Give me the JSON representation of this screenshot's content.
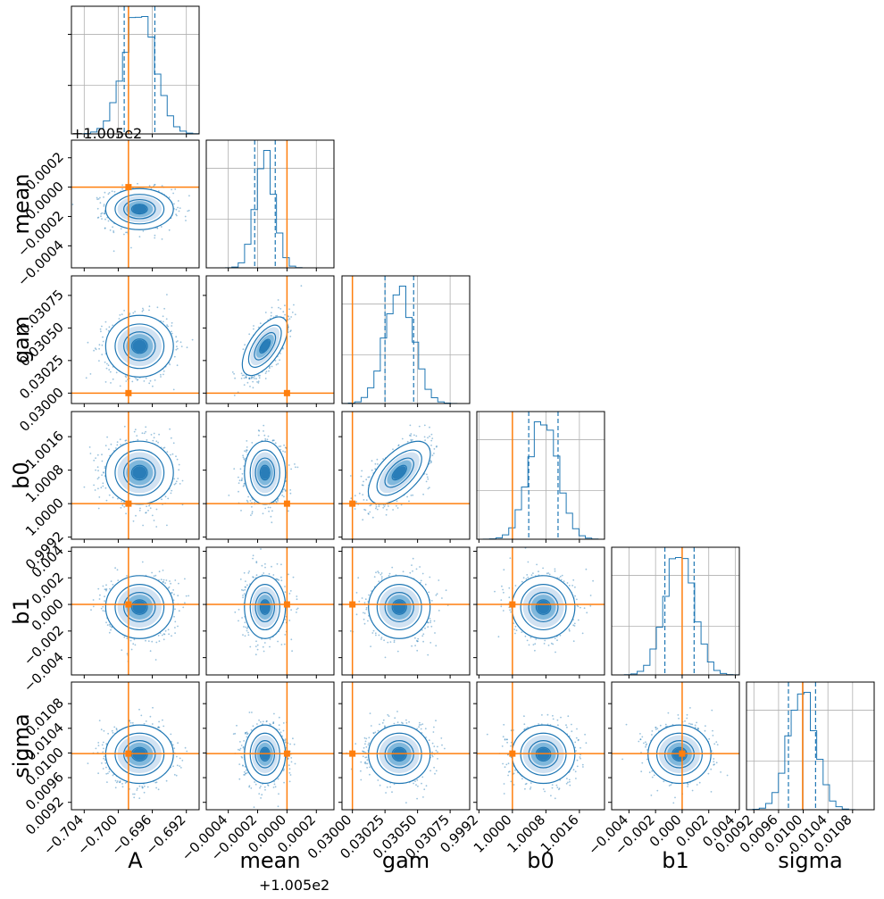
{
  "chart_data": {
    "type": "corner",
    "parameters": [
      {
        "key": "A",
        "label": "A",
        "offset_label": "",
        "range": [
          -0.7055,
          -0.6905
        ],
        "truth": -0.6988,
        "ticks": [
          "-0.704",
          "-0.700",
          "-0.696",
          "-0.692"
        ],
        "tick_values": [
          -0.704,
          -0.7,
          -0.696,
          -0.692
        ],
        "center": -0.6975,
        "spread": 0.00185,
        "quantiles": [
          -0.6993,
          -0.6957
        ]
      },
      {
        "key": "mean",
        "label": "mean",
        "offset_label": "+1.005e2",
        "range": [
          -0.00055,
          0.00032
        ],
        "truth": 0.0,
        "ticks": [
          "-0.0004",
          "-0.0002",
          "0.0000",
          "0.0002"
        ],
        "tick_values": [
          -0.0004,
          -0.0002,
          0.0,
          0.0002
        ],
        "center": -0.00015,
        "spread": 6.5e-05,
        "quantiles": [
          -0.00022,
          -8e-05
        ]
      },
      {
        "key": "gam",
        "label": "gam",
        "offset_label": "",
        "range": [
          0.02992,
          0.0309
        ],
        "truth": 0.03,
        "ticks": [
          "0.03000",
          "0.03025",
          "0.03050",
          "0.03075"
        ],
        "tick_values": [
          0.03,
          0.03025,
          0.0305,
          0.03075
        ],
        "center": 0.03036,
        "spread": 0.00011,
        "quantiles": [
          0.03025,
          0.03047
        ]
      },
      {
        "key": "b0",
        "label": "b0",
        "offset_label": "",
        "range": [
          0.99915,
          1.0022
        ],
        "truth": 1.0,
        "ticks": [
          "0.9992",
          "1.0000",
          "1.0008",
          "1.0016"
        ],
        "tick_values": [
          0.9992,
          1.0,
          1.0008,
          1.0016
        ],
        "center": 1.00074,
        "spread": 0.00035,
        "quantiles": [
          1.00039,
          1.00109
        ]
      },
      {
        "key": "b1",
        "label": "b1",
        "offset_label": "",
        "range": [
          -0.0053,
          0.0043
        ],
        "truth": 0.0,
        "ticks": [
          "-0.004",
          "-0.002",
          "0.000",
          "0.002",
          "0.004"
        ],
        "tick_values": [
          -0.004,
          -0.002,
          0.0,
          0.002,
          0.004
        ],
        "center": -0.0002,
        "spread": 0.0011,
        "quantiles": [
          -0.0013,
          0.0009
        ]
      },
      {
        "key": "sigma",
        "label": "sigma",
        "offset_label": "",
        "range": [
          0.00908,
          0.01115
        ],
        "truth": 0.00999,
        "ticks": [
          "0.0092",
          "0.0096",
          "0.0100",
          "0.0104",
          "0.0108"
        ],
        "tick_values": [
          0.0092,
          0.0096,
          0.01,
          0.0104,
          0.0108
        ],
        "center": 0.00998,
        "spread": 0.00022,
        "quantiles": [
          0.00976,
          0.0102
        ]
      }
    ],
    "correlations": [
      [
        1,
        2,
        0.65
      ],
      [
        2,
        3,
        0.6
      ]
    ],
    "top_offset_label": "+1.005e2",
    "colors": {
      "samples": "#1f77b4",
      "truth": "#ff7f0e",
      "grid": "#b0b0b0",
      "spine": "#000000"
    },
    "grid": true
  }
}
